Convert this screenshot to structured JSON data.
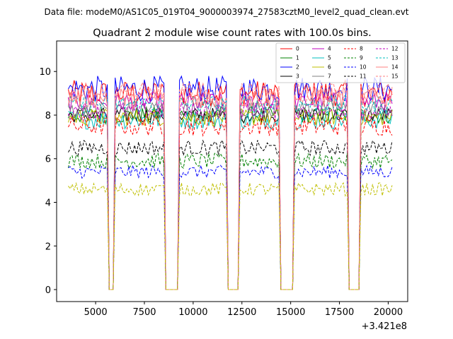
{
  "chart_data": {
    "type": "line",
    "suptitle": "Data file: modeM0/AS1C05_019T04_9000003974_27583cztM0_level2_quad_clean.evt",
    "title": "Quadrant 2 module wise count rates with 100.0s bins.",
    "xlabel": "",
    "ylabel": "",
    "x_offset_label": "+3.421e8",
    "xlim": [
      3000,
      21000
    ],
    "ylim": [
      -0.55,
      11.4
    ],
    "x_ticks": [
      5000,
      7500,
      10000,
      12500,
      15000,
      17500,
      20000
    ],
    "x_tick_labels": [
      "5000",
      "7500",
      "10000",
      "12500",
      "15000",
      "17500",
      "20000"
    ],
    "y_ticks": [
      0,
      2,
      4,
      6,
      8,
      10
    ],
    "y_tick_labels": [
      "0",
      "2",
      "4",
      "6",
      "8",
      "10"
    ],
    "bin_width_s": 100,
    "x_range": [
      3600,
      20200
    ],
    "observation_windows": [
      [
        3600,
        5650
      ],
      [
        5950,
        8550
      ],
      [
        9250,
        11700
      ],
      [
        12400,
        14450
      ],
      [
        15150,
        17900
      ],
      [
        18600,
        20200
      ]
    ],
    "series": [
      {
        "name": "0",
        "color": "#ff0000",
        "dash": false,
        "level": 9.0,
        "noise": 0.6
      },
      {
        "name": "1",
        "color": "#008000",
        "dash": false,
        "level": 8.0,
        "noise": 0.4
      },
      {
        "name": "2",
        "color": "#0000ff",
        "dash": false,
        "level": 9.2,
        "noise": 0.6
      },
      {
        "name": "3",
        "color": "#000000",
        "dash": false,
        "level": 8.0,
        "noise": 0.35
      },
      {
        "name": "4",
        "color": "#bf00bf",
        "dash": false,
        "level": 8.6,
        "noise": 0.45
      },
      {
        "name": "5",
        "color": "#00bfbf",
        "dash": false,
        "level": 7.8,
        "noise": 0.45
      },
      {
        "name": "6",
        "color": "#bfbf00",
        "dash": false,
        "level": 7.9,
        "noise": 0.4
      },
      {
        "name": "7",
        "color": "#808080",
        "dash": false,
        "level": 8.3,
        "noise": 0.4
      },
      {
        "name": "8",
        "color": "#ff0000",
        "dash": true,
        "level": 7.5,
        "noise": 0.45
      },
      {
        "name": "9",
        "color": "#008000",
        "dash": true,
        "level": 5.9,
        "noise": 0.35
      },
      {
        "name": "10",
        "color": "#0000ff",
        "dash": true,
        "level": 5.4,
        "noise": 0.3
      },
      {
        "name": "11",
        "color": "#000000",
        "dash": true,
        "level": 6.5,
        "noise": 0.35
      },
      {
        "name": "12",
        "color": "#bf00bf",
        "dash": true,
        "level": 8.2,
        "noise": 0.4
      },
      {
        "name": "13",
        "color": "#00bfbf",
        "dash": true,
        "level": 8.5,
        "noise": 0.4
      },
      {
        "name": "14",
        "color": "#ff8080",
        "dash": false,
        "level": 8.8,
        "noise": 0.5
      },
      {
        "name": "15",
        "color": "#ff8080",
        "dash": true,
        "level": 9.0,
        "noise": 0.5
      }
    ],
    "yellow_dashed_level": 4.6,
    "legend_position": "upper-right"
  }
}
